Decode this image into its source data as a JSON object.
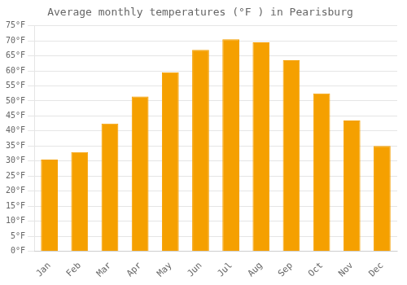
{
  "chart_data": {
    "type": "bar",
    "title": "Average monthly temperatures (°F ) in Pearisburg",
    "categories": [
      "Jan",
      "Feb",
      "Mar",
      "Apr",
      "May",
      "Jun",
      "Jul",
      "Aug",
      "Sep",
      "Oct",
      "Nov",
      "Dec"
    ],
    "values": [
      30.5,
      33.0,
      42.5,
      51.5,
      59.5,
      67.0,
      70.5,
      69.5,
      63.5,
      52.5,
      43.5,
      35.0
    ],
    "color": "#F5A000",
    "ylim": [
      0,
      75
    ],
    "yticks": [
      {
        "value": 0,
        "label": "0°F"
      },
      {
        "value": 5,
        "label": "5°F"
      },
      {
        "value": 10,
        "label": "10°F"
      },
      {
        "value": 15,
        "label": "15°F"
      },
      {
        "value": 20,
        "label": "20°F"
      },
      {
        "value": 25,
        "label": "25°F"
      },
      {
        "value": 30,
        "label": "30°F"
      },
      {
        "value": 35,
        "label": "35°F"
      },
      {
        "value": 40,
        "label": "40°F"
      },
      {
        "value": 45,
        "label": "45°F"
      },
      {
        "value": 50,
        "label": "50°F"
      },
      {
        "value": 55,
        "label": "55°F"
      },
      {
        "value": 60,
        "label": "60°F"
      },
      {
        "value": 65,
        "label": "65°F"
      },
      {
        "value": 70,
        "label": "70°F"
      },
      {
        "value": 75,
        "label": "75°F"
      }
    ],
    "grid": true
  }
}
